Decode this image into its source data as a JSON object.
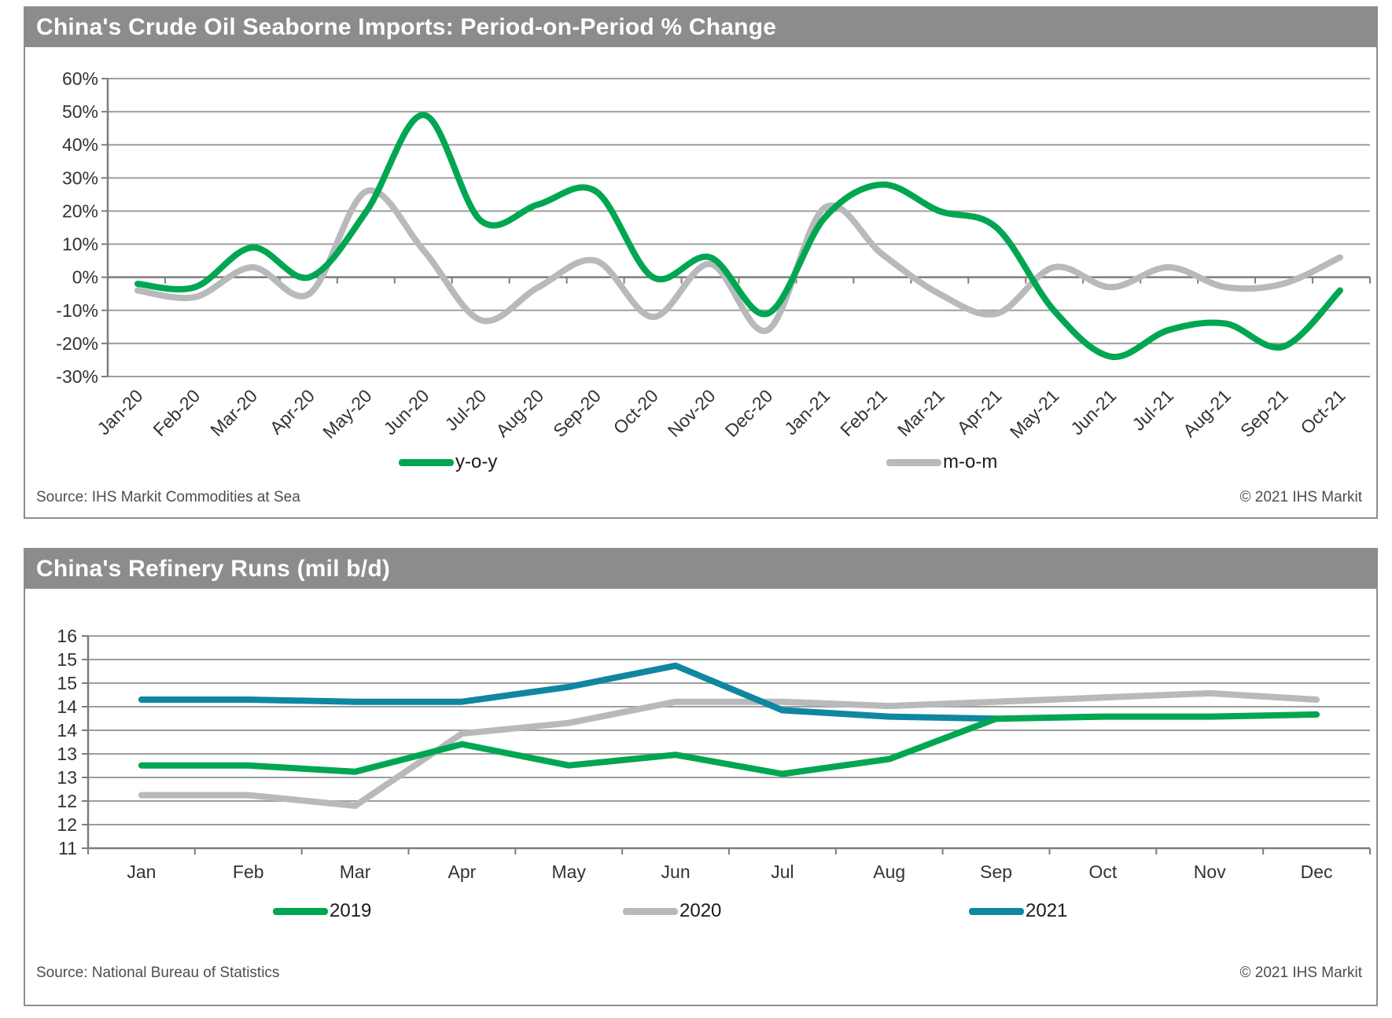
{
  "colors": {
    "header_bg": "#8a8c8e",
    "green": "#00a651",
    "gray_line": "#b8b9bb",
    "teal": "#0f87a0",
    "grid": "#9e9e9e",
    "axis": "#7d7d7d",
    "tick_text": "#333333",
    "source_text": "#4d4d4d"
  },
  "panel1": {
    "title": "China's Crude Oil Seaborne Imports: Period-on-Period % Change",
    "source": "Source: IHS Markit Commodities at Sea",
    "copyright": "© 2021 IHS Markit",
    "legend": [
      {
        "label": "y-o-y",
        "color": "#00a651"
      },
      {
        "label": "m-o-m",
        "color": "#b8b9bb"
      }
    ]
  },
  "panel2": {
    "title": "China's Refinery Runs (mil b/d)",
    "source": "Source: National Bureau of Statistics",
    "copyright": "© 2021 IHS Markit",
    "legend": [
      {
        "label": "2019",
        "color": "#00a651"
      },
      {
        "label": "2020",
        "color": "#b8b9bb"
      },
      {
        "label": "2021",
        "color": "#0f87a0"
      }
    ]
  },
  "chart_data": [
    {
      "type": "line",
      "title": "China's Crude Oil Seaborne Imports: Period-on-Period % Change",
      "smooth": true,
      "categories": [
        "Jan-20",
        "Feb-20",
        "Mar-20",
        "Apr-20",
        "May-20",
        "Jun-20",
        "Jul-20",
        "Aug-20",
        "Sep-20",
        "Oct-20",
        "Nov-20",
        "Dec-20",
        "Jan-21",
        "Feb-21",
        "Mar-21",
        "Apr-21",
        "May-21",
        "Jun-21",
        "Jul-21",
        "Aug-21",
        "Sep-21",
        "Oct-21"
      ],
      "ylim": [
        -30,
        60
      ],
      "ytick_step": 10,
      "ytick_labels": [
        "60%",
        "50%",
        "40%",
        "30%",
        "20%",
        "10%",
        "0%",
        "-10%",
        "-20%",
        "-30%"
      ],
      "grid": true,
      "legend_position": "bottom",
      "series": [
        {
          "name": "y-o-y",
          "color": "#00a651",
          "values": [
            -2,
            -3,
            9,
            0,
            20,
            49,
            17,
            22,
            26,
            0,
            6,
            -11,
            18,
            28,
            20,
            15,
            -10,
            -24,
            -16,
            -14,
            -21,
            -4
          ]
        },
        {
          "name": "m-o-m",
          "color": "#b8b9bb",
          "values": [
            -4,
            -6,
            3,
            -5,
            26,
            8,
            -13,
            -3,
            5,
            -12,
            4,
            -16,
            21,
            7,
            -5,
            -11,
            3,
            -3,
            3,
            -3,
            -2,
            6
          ]
        }
      ]
    },
    {
      "type": "line",
      "title": "China's Refinery Runs (mil b/d)",
      "smooth": false,
      "categories": [
        "Jan",
        "Feb",
        "Mar",
        "Apr",
        "May",
        "Jun",
        "Jul",
        "Aug",
        "Sep",
        "Oct",
        "Nov",
        "Dec"
      ],
      "ylim": [
        11,
        16
      ],
      "ytick_labels": [
        "16",
        "15",
        "15",
        "14",
        "14",
        "13",
        "13",
        "12",
        "12",
        "11"
      ],
      "grid": true,
      "legend_position": "bottom",
      "series": [
        {
          "name": "2019",
          "color": "#00a651",
          "values": [
            12.95,
            12.95,
            12.8,
            13.45,
            12.95,
            13.2,
            12.75,
            13.1,
            14.05,
            14.1,
            14.1,
            14.15
          ]
        },
        {
          "name": "2020",
          "color": "#b8b9bb",
          "values": [
            12.25,
            12.25,
            12.0,
            13.7,
            13.95,
            14.45,
            14.45,
            14.35,
            14.45,
            14.55,
            14.65,
            14.5
          ]
        },
        {
          "name": "2021",
          "color": "#0f87a0",
          "values": [
            14.5,
            14.5,
            14.45,
            14.45,
            14.8,
            15.3,
            14.25,
            14.1,
            14.05
          ]
        }
      ]
    }
  ]
}
